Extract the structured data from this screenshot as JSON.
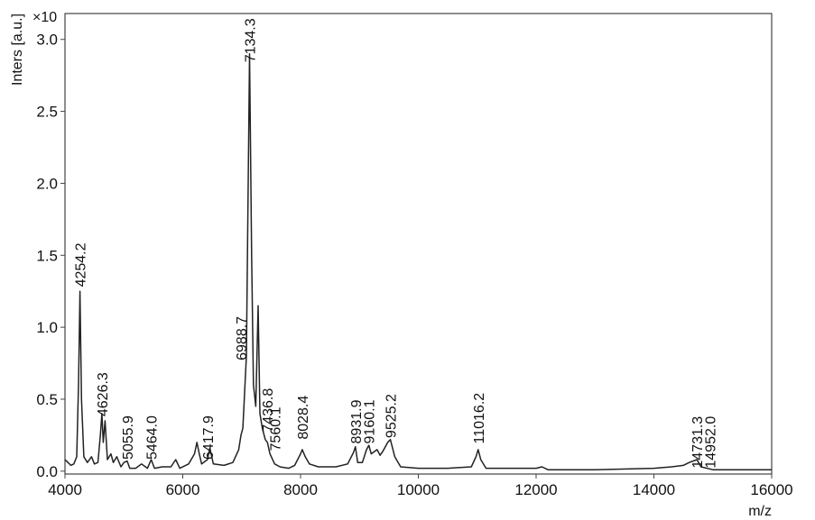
{
  "chart_data": {
    "type": "line",
    "y_label": "Inters [a.u.]",
    "y_multiplier": "×10",
    "x_label": "m/z",
    "xlim": [
      4000,
      16000
    ],
    "ylim": [
      -0.02,
      3.18
    ],
    "xticks": [
      4000,
      6000,
      8000,
      10000,
      12000,
      14000,
      16000
    ],
    "yticks": [
      {
        "value": 0,
        "label": "0.0"
      },
      0.5,
      {
        "value": 1,
        "label": "1.0"
      },
      1.5,
      {
        "value": 2,
        "label": "2.0"
      },
      2.5,
      {
        "value": 3,
        "label": "3.0"
      }
    ],
    "color": "#222222",
    "x": [
      4000,
      4050,
      4100,
      4150,
      4200,
      4230,
      4254.2,
      4280,
      4320,
      4380,
      4450,
      4500,
      4560,
      4600,
      4626.3,
      4650,
      4680,
      4720,
      4780,
      4820,
      4880,
      4950,
      5000,
      5055.9,
      5100,
      5200,
      5300,
      5400,
      5464,
      5520,
      5650,
      5800,
      5880,
      5950,
      6100,
      6200,
      6240,
      6280,
      6320,
      6417.9,
      6460,
      6520,
      6700,
      6850,
      6950,
      6988.7,
      7020,
      7080,
      7134.3,
      7170,
      7200,
      7240,
      7280,
      7310,
      7350,
      7400,
      7436.8,
      7480,
      7560.1,
      7650,
      7800,
      7900,
      8000,
      8028.4,
      8080,
      8150,
      8300,
      8600,
      8800,
      8900,
      8931.9,
      8970,
      9050,
      9120,
      9160.1,
      9200,
      9300,
      9350,
      9400,
      9480,
      9525.2,
      9600,
      9700,
      10000,
      10500,
      10900,
      10980,
      11016.2,
      11060,
      11150,
      12000,
      12100,
      12200,
      13000,
      14000,
      14300,
      14500,
      14600,
      14731.3,
      14800,
      15000,
      16000
    ],
    "values": [
      0.08,
      0.06,
      0.04,
      0.05,
      0.1,
      0.6,
      1.25,
      0.5,
      0.1,
      0.06,
      0.1,
      0.05,
      0.06,
      0.25,
      0.4,
      0.2,
      0.35,
      0.08,
      0.12,
      0.06,
      0.1,
      0.03,
      0.06,
      0.07,
      0.02,
      0.02,
      0.05,
      0.02,
      0.08,
      0.02,
      0.03,
      0.03,
      0.08,
      0.02,
      0.05,
      0.12,
      0.2,
      0.12,
      0.05,
      0.08,
      0.16,
      0.05,
      0.04,
      0.06,
      0.15,
      0.25,
      0.3,
      0.8,
      2.9,
      1.5,
      0.6,
      0.45,
      1.15,
      0.4,
      0.3,
      0.22,
      0.2,
      0.12,
      0.05,
      0.03,
      0.02,
      0.04,
      0.12,
      0.15,
      0.1,
      0.05,
      0.03,
      0.03,
      0.05,
      0.13,
      0.17,
      0.06,
      0.06,
      0.15,
      0.18,
      0.12,
      0.15,
      0.11,
      0.14,
      0.2,
      0.22,
      0.1,
      0.03,
      0.02,
      0.02,
      0.03,
      0.1,
      0.15,
      0.08,
      0.02,
      0.02,
      0.03,
      0.01,
      0.01,
      0.02,
      0.03,
      0.04,
      0.06,
      0.08,
      0.03,
      0.01,
      0.01
    ],
    "annotations": [
      {
        "x": 4254.2,
        "y": 1.28,
        "label": "4254.2"
      },
      {
        "x": 4626.3,
        "y": 0.38,
        "label": "4626.3"
      },
      {
        "x": 5055.9,
        "y": 0.08,
        "label": "5055.9"
      },
      {
        "x": 5464.0,
        "y": 0.08,
        "label": "5464.0"
      },
      {
        "x": 6417.9,
        "y": 0.08,
        "label": "6417.9"
      },
      {
        "x": 6988.7,
        "y": 0.77,
        "label": "6988.7"
      },
      {
        "x": 7134.3,
        "y": 2.84,
        "label": "7134.3"
      },
      {
        "x": 7436.8,
        "y": 0.27,
        "label": "7436.8"
      },
      {
        "x": 7560.1,
        "y": 0.14,
        "label": "7560.1"
      },
      {
        "x": 8028.4,
        "y": 0.22,
        "label": "8028.4"
      },
      {
        "x": 8931.9,
        "y": 0.19,
        "label": "8931.9"
      },
      {
        "x": 9160.1,
        "y": 0.19,
        "label": "9160.1"
      },
      {
        "x": 9525.2,
        "y": 0.23,
        "label": "9525.2"
      },
      {
        "x": 11016.2,
        "y": 0.19,
        "label": "11016.2"
      },
      {
        "x": 14731.3,
        "y": 0.02,
        "label": "14731.3"
      },
      {
        "x": 14952.0,
        "y": 0.02,
        "label": "14952.0"
      }
    ]
  }
}
